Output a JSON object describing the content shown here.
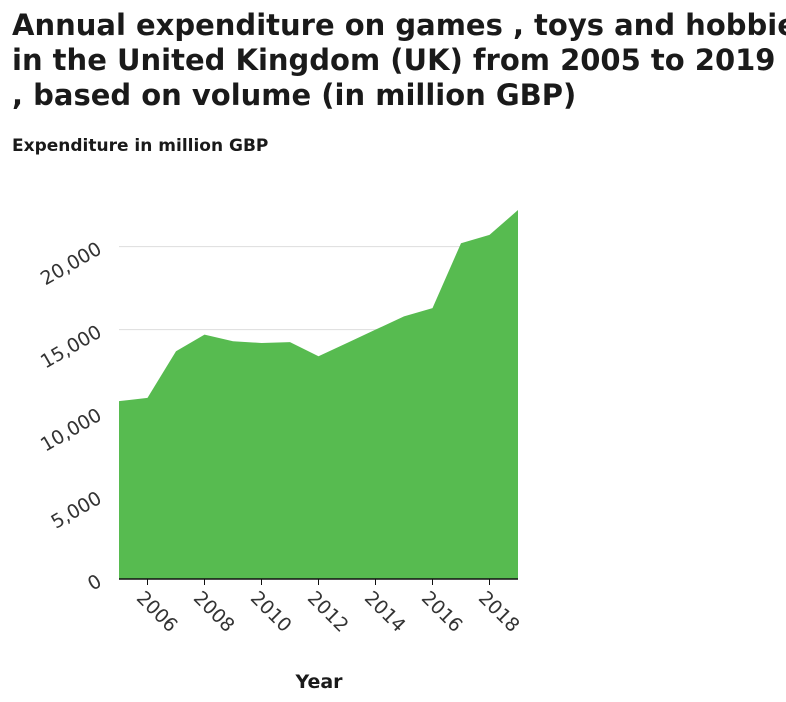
{
  "chart_data": {
    "type": "area",
    "title_lines": [
      "Annual expenditure on games , toys and hobbies",
      "in the United Kingdom (UK) from 2005 to 2019",
      ", based on volume (in million GBP)"
    ],
    "xlabel": "Year",
    "ylabel": "Expenditure in million GBP",
    "x": [
      2005,
      2006,
      2007,
      2008,
      2009,
      2010,
      2011,
      2012,
      2013,
      2014,
      2015,
      2016,
      2017,
      2018,
      2019
    ],
    "values": [
      10700,
      10900,
      13700,
      14700,
      14300,
      14200,
      14250,
      13400,
      14200,
      15000,
      15800,
      16300,
      20200,
      20700,
      22200
    ],
    "xticks": [
      2006,
      2008,
      2010,
      2012,
      2014,
      2016,
      2018
    ],
    "xtick_labels": [
      "2006",
      "2008",
      "2010",
      "2012",
      "2014",
      "2016",
      "2018"
    ],
    "yticks": [
      0,
      5000,
      10000,
      15000,
      20000
    ],
    "ytick_labels": [
      "0",
      "5,000",
      "10,000",
      "15,000",
      "20,000"
    ],
    "xlim": [
      2005,
      2019
    ],
    "ylim": [
      0,
      22200
    ],
    "grid": "horizontal",
    "fill_color": "#57bb50",
    "grid_color": "#dddddd",
    "axis_color": "#111111"
  }
}
